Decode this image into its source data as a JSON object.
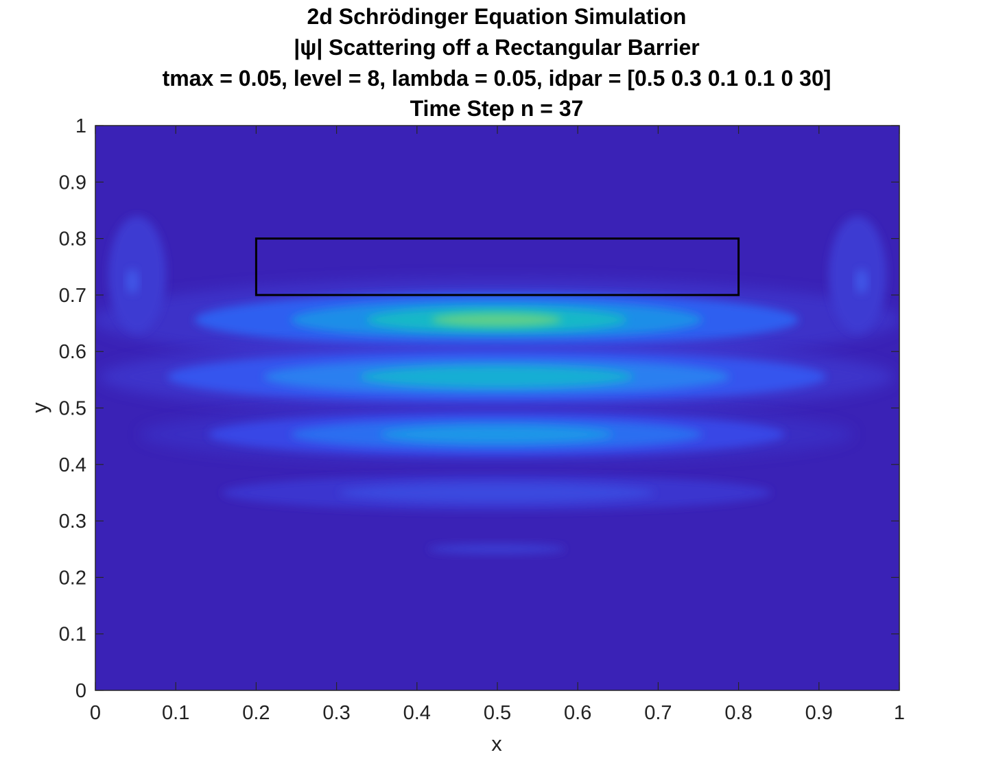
{
  "chart_data": {
    "type": "heatmap",
    "title_lines": [
      "2d Schrödinger Equation Simulation",
      "|ψ| Scattering off a Rectangular Barrier",
      "tmax = 0.05, level = 8, lambda = 0.05, idpar = [0.5 0.3 0.1 0.1 0 30]",
      "Time Step n = 37"
    ],
    "xlabel": "x",
    "ylabel": "y",
    "xlim": [
      0,
      1
    ],
    "ylim": [
      0,
      1
    ],
    "xticks": [
      "0",
      "0.1",
      "0.2",
      "0.3",
      "0.4",
      "0.5",
      "0.6",
      "0.7",
      "0.8",
      "0.9",
      "1"
    ],
    "yticks": [
      "0",
      "0.1",
      "0.2",
      "0.3",
      "0.4",
      "0.5",
      "0.6",
      "0.7",
      "0.8",
      "0.9",
      "1"
    ],
    "colormap": "parula",
    "background_color": "#3a22b6",
    "barrier": {
      "x": [
        0.2,
        0.8
      ],
      "y": [
        0.7,
        0.8
      ],
      "edge_color": "#000000"
    },
    "bands": [
      {
        "y": 0.65,
        "peak_x": 0.5,
        "level": 0.62
      },
      {
        "y": 0.55,
        "peak_x": 0.5,
        "level": 0.5
      },
      {
        "y": 0.45,
        "peak_x": 0.5,
        "level": 0.42
      },
      {
        "y": 0.35,
        "peak_x": 0.5,
        "level": 0.18
      },
      {
        "y": 0.25,
        "peak_x": 0.5,
        "level": 0.08
      }
    ]
  }
}
